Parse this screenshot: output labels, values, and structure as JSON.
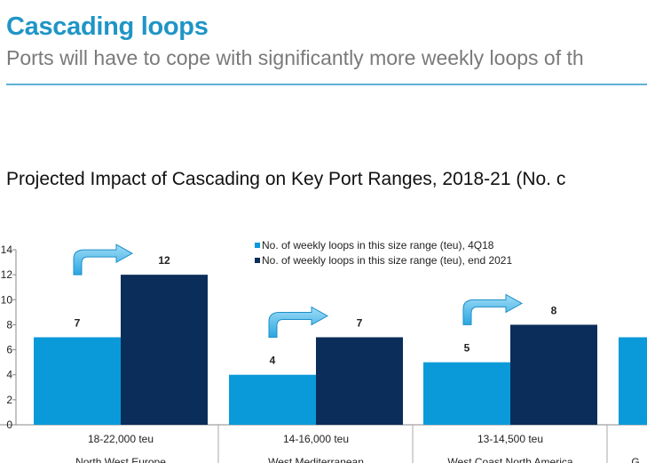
{
  "header": {
    "title": "Cascading loops",
    "subtitle": "Ports will have to cope with significantly more weekly loops of th"
  },
  "chart_data": {
    "type": "bar",
    "title": "Projected Impact of Cascading on Key Port Ranges, 2018-21 (No. c",
    "xlabel": "",
    "ylabel": "",
    "ylim": [
      0,
      14
    ],
    "yticks": [
      "0",
      "2",
      "4",
      "6",
      "8",
      "10",
      "12",
      "14"
    ],
    "grid": false,
    "legend_position": "top-center",
    "categories": [
      {
        "size": "18-22,000 teu",
        "region": "North West Europe"
      },
      {
        "size": "14-16,000 teu",
        "region": "West Mediterranean"
      },
      {
        "size": "13-14,500 teu",
        "region": "West Coast North America"
      },
      {
        "size": "",
        "region": "G"
      }
    ],
    "series": [
      {
        "name": "No. of weekly loops in this size range (teu), 4Q18",
        "color": "#0b9ad9",
        "values": [
          7,
          4,
          5,
          7
        ]
      },
      {
        "name": "No. of weekly loops in this size range (teu), end 2021",
        "color": "#0b2d5a",
        "values": [
          12,
          7,
          8,
          null
        ]
      }
    ],
    "data_labels": [
      [
        "7",
        "4",
        "5",
        ""
      ],
      [
        "12",
        "7",
        "8",
        ""
      ]
    ],
    "annotation_color": "#3fb0e6"
  }
}
